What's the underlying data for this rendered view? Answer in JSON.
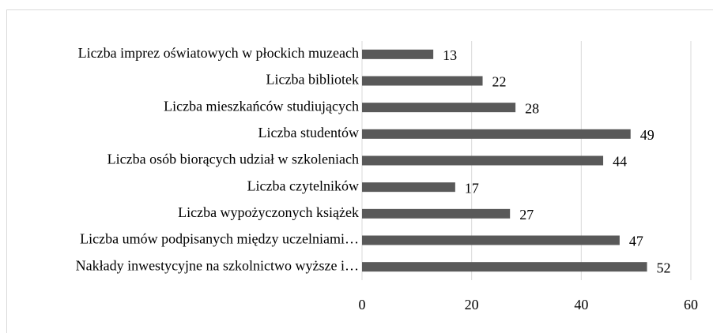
{
  "chart_data": {
    "type": "bar",
    "orientation": "horizontal",
    "categories": [
      "Liczba imprez oświatowych w płockich muzeach",
      "Liczba bibliotek",
      "Liczba mieszkańców studiujących",
      "Liczba studentów",
      "Liczba osób biorących udział w szkoleniach",
      "Liczba czytelników",
      "Liczba wypożyczonych książek",
      "Liczba umów podpisanych między uczelniami…",
      "Nakłady inwestycyjne na szkolnictwo wyższe i…"
    ],
    "values": [
      13,
      22,
      28,
      49,
      44,
      17,
      27,
      47,
      52
    ],
    "color": "#595959",
    "xlim": [
      0,
      60
    ],
    "xticks": [
      0,
      20,
      40,
      60
    ],
    "grid": true
  }
}
